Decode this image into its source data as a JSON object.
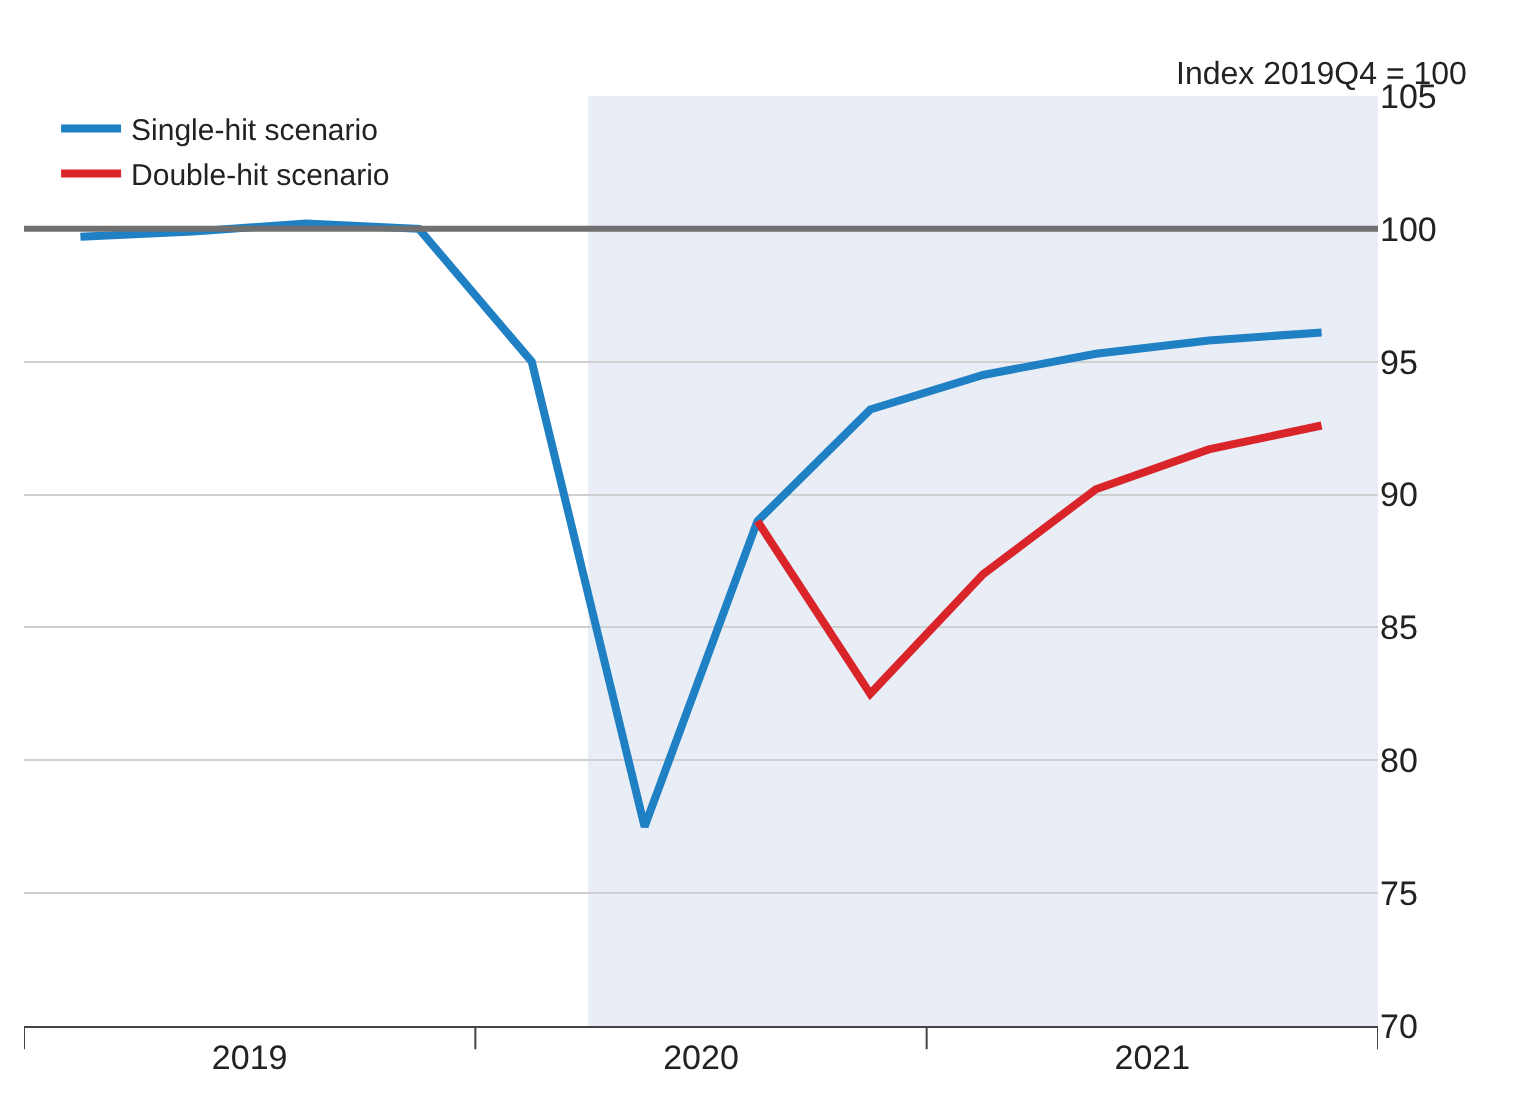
{
  "chart_data": {
    "type": "line",
    "annotations": [
      "Index 2019Q4 = 100"
    ],
    "x": [
      2019.125,
      2019.375,
      2019.625,
      2019.875,
      2020.125,
      2020.375,
      2020.625,
      2020.875,
      2021.125,
      2021.375,
      2021.625,
      2021.875
    ],
    "series": [
      {
        "name": "Single-hit scenario",
        "color": "#1f80c4",
        "values": [
          99.7,
          99.9,
          100.2,
          100.0,
          95.0,
          77.5,
          89.0,
          93.2,
          94.5,
          95.3,
          95.8,
          96.1
        ]
      },
      {
        "name": "Double-hit scenario",
        "color": "#d9252a",
        "x": [
          2020.625,
          2020.875,
          2021.125,
          2021.375,
          2021.625,
          2021.875
        ],
        "values": [
          89.0,
          82.5,
          87.0,
          90.2,
          91.7,
          92.6
        ]
      }
    ],
    "xlim": [
      2019,
      2022
    ],
    "xticks": [
      {
        "value": 2019,
        "label": null
      },
      {
        "value": 2019.5,
        "label": "2019"
      },
      {
        "value": 2020,
        "label": null
      },
      {
        "value": 2020.5,
        "label": "2020"
      },
      {
        "value": 2021,
        "label": null
      },
      {
        "value": 2021.5,
        "label": "2021"
      },
      {
        "value": 2022,
        "label": null
      }
    ],
    "ylim": [
      70,
      105
    ],
    "yticks": [
      70,
      75,
      80,
      85,
      90,
      95,
      100,
      105
    ],
    "ref_lines": [
      {
        "axis": "y",
        "value": 100,
        "color": "#707070"
      }
    ],
    "bands": [
      {
        "axis": "x",
        "from": 2020.25,
        "to": 2022,
        "color": "#e9edf6"
      }
    ],
    "grid": "y",
    "legend": "top left",
    "marker": "none",
    "line_style": "solid"
  }
}
